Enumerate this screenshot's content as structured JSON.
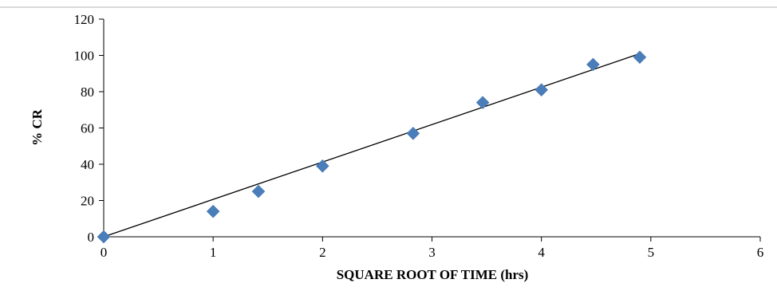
{
  "chart_data": {
    "type": "scatter",
    "xlabel": "SQUARE ROOT OF TIME (hrs)",
    "ylabel": "% CR",
    "xlim": [
      0,
      6
    ],
    "ylim": [
      0,
      120
    ],
    "x_ticks": [
      0,
      1,
      2,
      3,
      4,
      5,
      6
    ],
    "y_ticks": [
      0,
      20,
      40,
      60,
      80,
      100,
      120
    ],
    "grid": false,
    "legend": "none",
    "marker": "diamond",
    "marker_color": "#4a7ebb",
    "line_color": "#000000",
    "series": [
      {
        "x": [
          0,
          1,
          1.414,
          2,
          2.828,
          3.464,
          4,
          4.472,
          4.899
        ],
        "y": [
          0,
          14,
          25,
          39,
          57,
          74,
          81,
          95,
          99
        ]
      }
    ],
    "trendline": {
      "type": "linear",
      "x": [
        0,
        4.899
      ],
      "y": [
        0,
        101
      ]
    }
  }
}
